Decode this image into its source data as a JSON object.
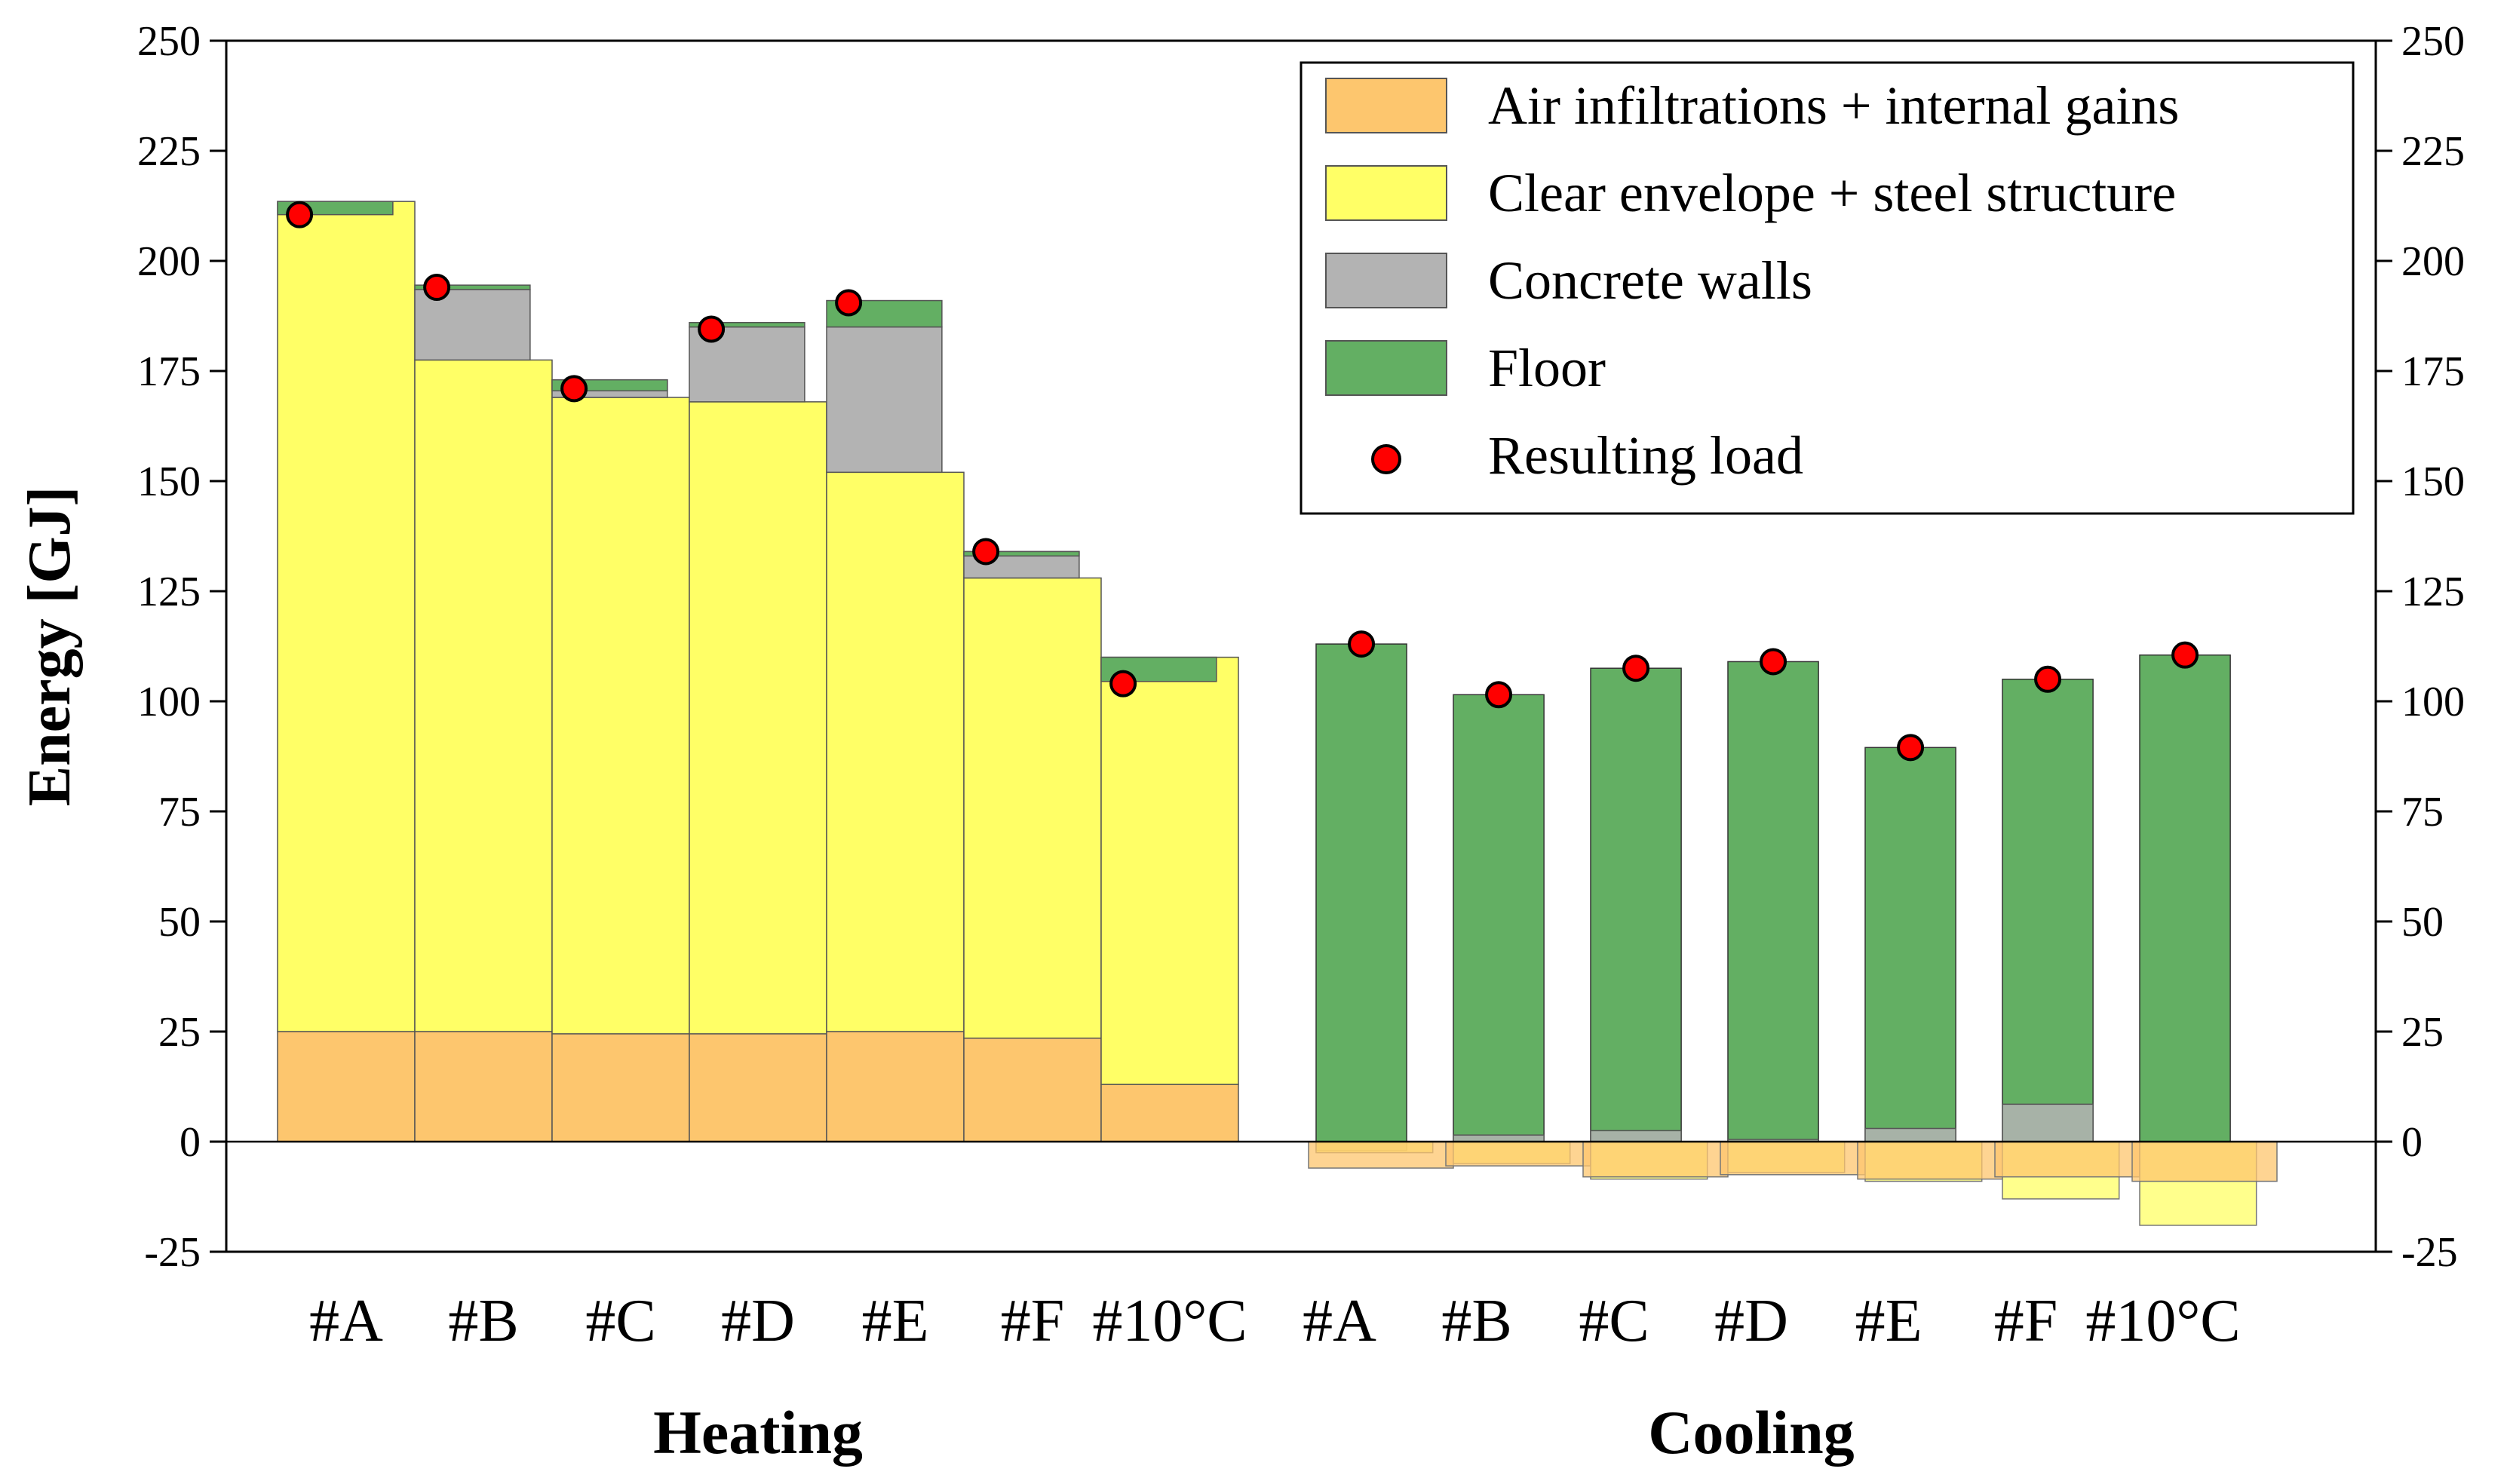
{
  "chart_data": {
    "type": "bar",
    "subtype": "overlapping stacked bars with markers",
    "ylabel": "Energy [GJ]",
    "ylim": [
      -25,
      250
    ],
    "yticks": [
      -25,
      0,
      25,
      50,
      75,
      100,
      125,
      150,
      175,
      200,
      225,
      250
    ],
    "y_axis_right": true,
    "groups": [
      {
        "label": "Heating",
        "categories": [
          "#A",
          "#B",
          "#C",
          "#D",
          "#E",
          "#F",
          "#10°C"
        ],
        "series": [
          {
            "name": "Air infiltrations + internal gains",
            "color": "#FDC66E",
            "values": [
              25,
              25,
              24.5,
              24.5,
              25,
              23.5,
              13
            ]
          },
          {
            "name": "Clear envelope + steel structure",
            "color": "#FFFF66",
            "values": [
              188.5,
              152.5,
              144.5,
              143.5,
              127,
              104.5,
              97
            ]
          },
          {
            "name": "Concrete walls",
            "color": "#B3B3B3",
            "values": [
              0,
              16,
              4,
              17,
              33,
              6,
              0
            ]
          },
          {
            "name": "Floor",
            "color": "#63AF63",
            "values": [
              -3,
              1,
              -2.5,
              1,
              6,
              -1,
              -5.5
            ]
          }
        ],
        "resulting_load": [
          210.5,
          194,
          171,
          184.5,
          190.5,
          134,
          104
        ]
      },
      {
        "label": "Cooling",
        "categories": [
          "#A",
          "#B",
          "#C",
          "#D",
          "#E",
          "#F",
          "#10°C"
        ],
        "series": [
          {
            "name": "Air infiltrations + internal gains",
            "color": "#FDC66E",
            "values": [
              -6,
              -5.5,
              -8,
              -7.5,
              -8.5,
              -8,
              -9
            ]
          },
          {
            "name": "Clear envelope + steel structure",
            "color": "#FFFF66",
            "values": [
              -2.5,
              -5,
              -8.5,
              -7,
              -9,
              -13,
              -19
            ]
          },
          {
            "name": "Concrete walls",
            "color": "#B3B3B3",
            "values": [
              -2,
              1.5,
              2.5,
              0.5,
              3,
              8.5,
              0
            ]
          },
          {
            "name": "Floor",
            "color": "#63AF63",
            "values": [
              113,
              101.5,
              107.5,
              109,
              89.5,
              105,
              110.5
            ]
          }
        ],
        "resulting_load": [
          113,
          101.5,
          107.5,
          109,
          89.5,
          105,
          110.5
        ]
      }
    ],
    "legend": {
      "position": "top-right",
      "entries": [
        {
          "label": "Air infiltrations + internal gains",
          "color": "#FDC66E",
          "kind": "box"
        },
        {
          "label": "Clear envelope + steel structure",
          "color": "#FFFF66",
          "kind": "box"
        },
        {
          "label": "Concrete walls",
          "color": "#B3B3B3",
          "kind": "box"
        },
        {
          "label": "Floor",
          "color": "#63AF63",
          "kind": "box"
        },
        {
          "label": "Resulting load",
          "color": "#FF0000",
          "kind": "marker"
        }
      ]
    }
  }
}
